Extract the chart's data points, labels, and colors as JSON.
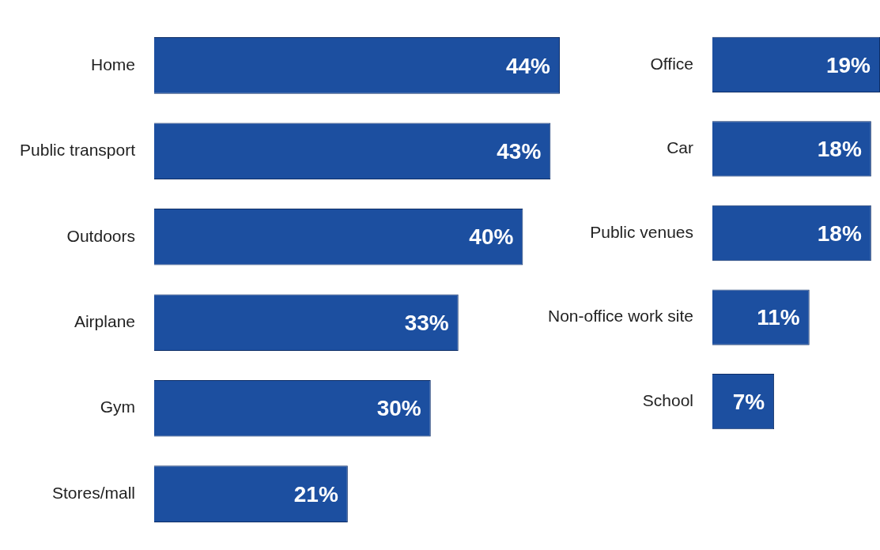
{
  "chart_data": [
    {
      "type": "bar",
      "orientation": "horizontal",
      "categories": [
        "Home",
        "Public transport",
        "Outdoors",
        "Airplane",
        "Gym",
        "Stores/mall"
      ],
      "values": [
        44,
        43,
        40,
        33,
        30,
        21
      ],
      "value_labels": [
        "44%",
        "43%",
        "40%",
        "33%",
        "30%",
        "21%"
      ],
      "color": "#1c4fa0",
      "tick_labels": "y",
      "grid": false,
      "legend": false
    },
    {
      "type": "bar",
      "orientation": "horizontal",
      "categories": [
        "Office",
        "Car",
        "Public venues",
        "Non-office work site",
        "School"
      ],
      "values": [
        19,
        18,
        18,
        11,
        7
      ],
      "value_labels": [
        "19%",
        "18%",
        "18%",
        "11%",
        "7%"
      ],
      "color": "#1c4fa0",
      "tick_labels": "y",
      "grid": false,
      "legend": false
    }
  ]
}
